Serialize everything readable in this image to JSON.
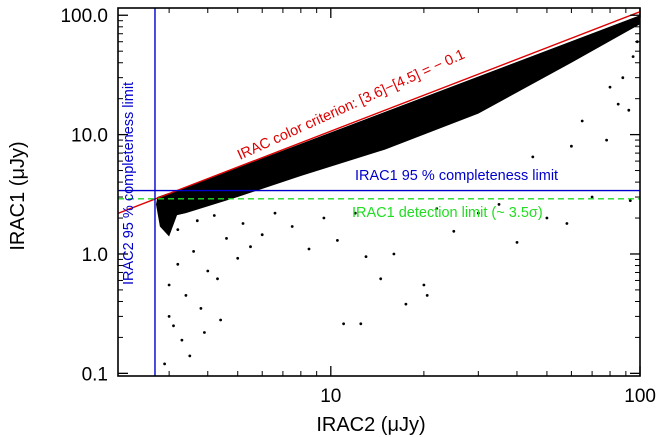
{
  "chart_data": {
    "type": "scatter",
    "title": "",
    "xlabel": "IRAC2 (μJy)",
    "ylabel": "IRAC1 (μJy)",
    "x_scale": "log",
    "y_scale": "log",
    "xlim": [
      2.05,
      100
    ],
    "ylim": [
      0.095,
      115
    ],
    "x_ticks": [
      {
        "value": 10,
        "label": "10"
      },
      {
        "value": 100,
        "label": "100"
      }
    ],
    "y_ticks": [
      {
        "value": 0.1,
        "label": "0.1"
      },
      {
        "value": 1.0,
        "label": "1.0"
      },
      {
        "value": 10.0,
        "label": "10.0"
      },
      {
        "value": 100.0,
        "label": "100.0"
      }
    ],
    "grid": false,
    "lines": [
      {
        "kind": "diagonal",
        "x": [
          2.05,
          100
        ],
        "y": [
          2.19,
          107
        ],
        "color": "#dd0000",
        "style": "solid",
        "label": "IRAC color criterion: [3.6]−[4.5] = − 0.1"
      },
      {
        "kind": "vertical",
        "x": 2.7,
        "color": "#0000cc",
        "style": "solid",
        "label": "IRAC2 95 % completeness limit"
      },
      {
        "kind": "horizontal",
        "y": 3.4,
        "color": "#0000cc",
        "style": "solid",
        "label": "IRAC1 95 % completeness limit"
      },
      {
        "kind": "horizontal",
        "y": 2.9,
        "color": "#22dd22",
        "style": "dashed",
        "label": "IRAC1 detection limit (~ 3.5σ)"
      }
    ],
    "points": [
      [
        3.0,
        0.55
      ],
      [
        3.2,
        0.82
      ],
      [
        3.4,
        0.45
      ],
      [
        3.6,
        1.05
      ],
      [
        3.8,
        0.35
      ],
      [
        4.0,
        0.72
      ],
      [
        4.3,
        0.62
      ],
      [
        4.6,
        1.35
      ],
      [
        5.0,
        0.92
      ],
      [
        5.5,
        1.15
      ],
      [
        6.0,
        1.45
      ],
      [
        3.1,
        0.25
      ],
      [
        3.3,
        0.19
      ],
      [
        3.5,
        0.14
      ],
      [
        2.9,
        0.12
      ],
      [
        3.0,
        0.3
      ],
      [
        3.9,
        0.22
      ],
      [
        4.4,
        0.28
      ],
      [
        3.2,
        1.6
      ],
      [
        3.7,
        1.9
      ],
      [
        4.2,
        2.1
      ],
      [
        5.2,
        1.8
      ],
      [
        6.6,
        2.2
      ],
      [
        7.5,
        1.7
      ],
      [
        8.5,
        1.1
      ],
      [
        9.5,
        2.0
      ],
      [
        10.5,
        1.3
      ],
      [
        12.0,
        2.2
      ],
      [
        13.0,
        0.95
      ],
      [
        16.0,
        1.0
      ],
      [
        17.5,
        0.38
      ],
      [
        20.0,
        0.55
      ],
      [
        20.5,
        0.45
      ],
      [
        11.0,
        0.26
      ],
      [
        12.5,
        0.26
      ],
      [
        14.5,
        0.62
      ],
      [
        22.0,
        2.4
      ],
      [
        25.0,
        1.55
      ],
      [
        30.0,
        2.2
      ],
      [
        35.0,
        2.6
      ],
      [
        40.0,
        1.25
      ],
      [
        50.0,
        2.0
      ],
      [
        58.0,
        1.8
      ],
      [
        70.0,
        3.0
      ],
      [
        93.0,
        2.8
      ],
      [
        92.0,
        16.0
      ],
      [
        85.0,
        18.0
      ],
      [
        78.0,
        9.0
      ],
      [
        60.0,
        8.0
      ],
      [
        45.0,
        6.5
      ],
      [
        65.0,
        13.0
      ],
      [
        88.0,
        30.0
      ],
      [
        95.0,
        45.0
      ],
      [
        80.0,
        25.0
      ],
      [
        98.0,
        60.0
      ]
    ]
  }
}
